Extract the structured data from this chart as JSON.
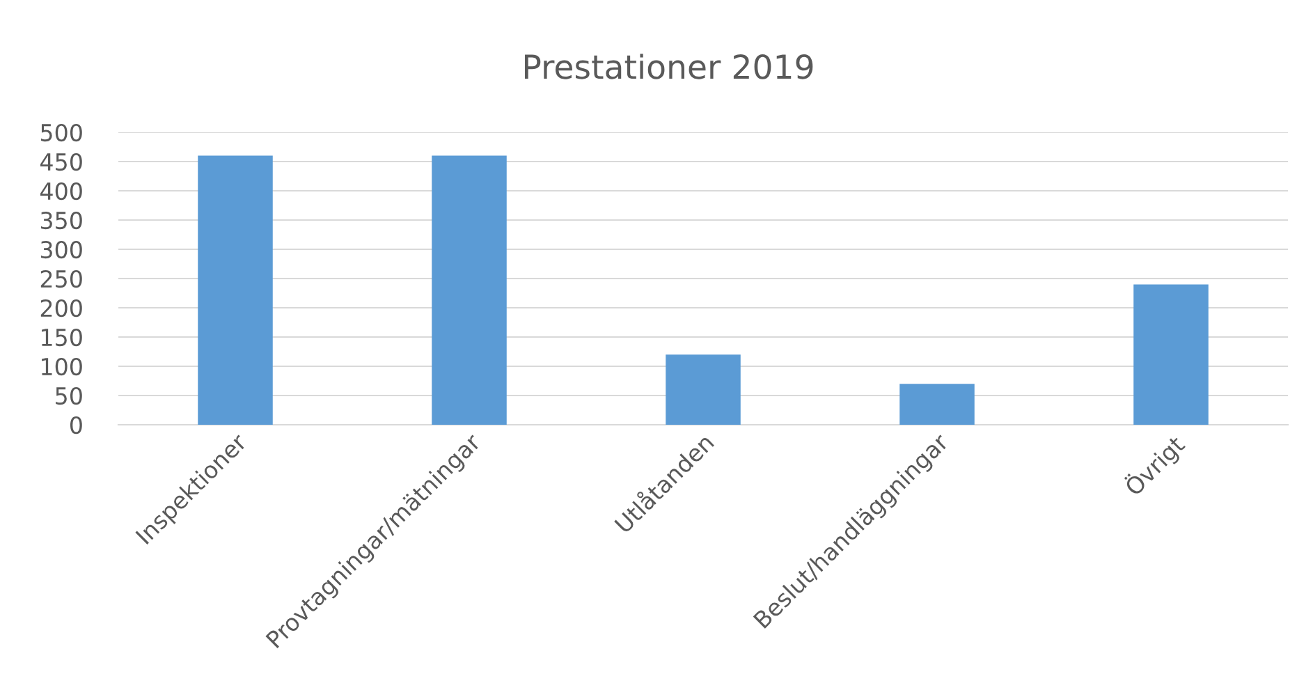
{
  "chart_data": {
    "type": "bar",
    "title": "Prestationer 2019",
    "categories": [
      "Inspektioner",
      "Provtagningar/mätningar",
      "Utlåtanden",
      "Beslut/handläggningar",
      "Övrigt"
    ],
    "values": [
      460,
      460,
      120,
      70,
      240
    ],
    "color": "#5b9bd5",
    "ylim": [
      0,
      500
    ],
    "yticks": [
      0,
      50,
      100,
      150,
      200,
      250,
      300,
      350,
      400,
      450,
      500
    ],
    "grid": "y"
  }
}
